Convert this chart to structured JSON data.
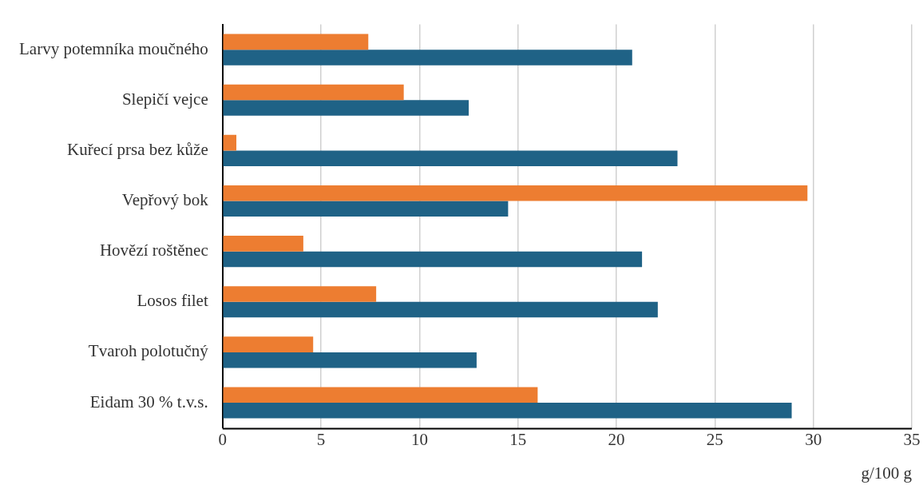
{
  "chart_data": {
    "type": "bar",
    "orientation": "horizontal",
    "xlabel": "g/100 g",
    "categories": [
      "Larvy potemníka moučného",
      "Slepičí vejce",
      "Kuřecí prsa bez kůže",
      "Vepřový bok",
      "Hovězí roštěnec",
      "Losos filet",
      "Tvaroh polotučný",
      "Eidam 30 % t.v.s."
    ],
    "series": [
      {
        "color": "#ed7d31",
        "values": [
          7.4,
          9.2,
          0.7,
          29.7,
          4.1,
          7.8,
          4.6,
          16.0
        ]
      },
      {
        "color": "#1f6286",
        "values": [
          20.8,
          12.5,
          23.1,
          14.5,
          21.3,
          22.1,
          12.9,
          28.9
        ]
      }
    ],
    "xlim": [
      0,
      35
    ],
    "xticks": [
      0,
      5,
      10,
      15,
      20,
      25,
      30,
      35
    ],
    "grid": "x",
    "legend": false
  }
}
